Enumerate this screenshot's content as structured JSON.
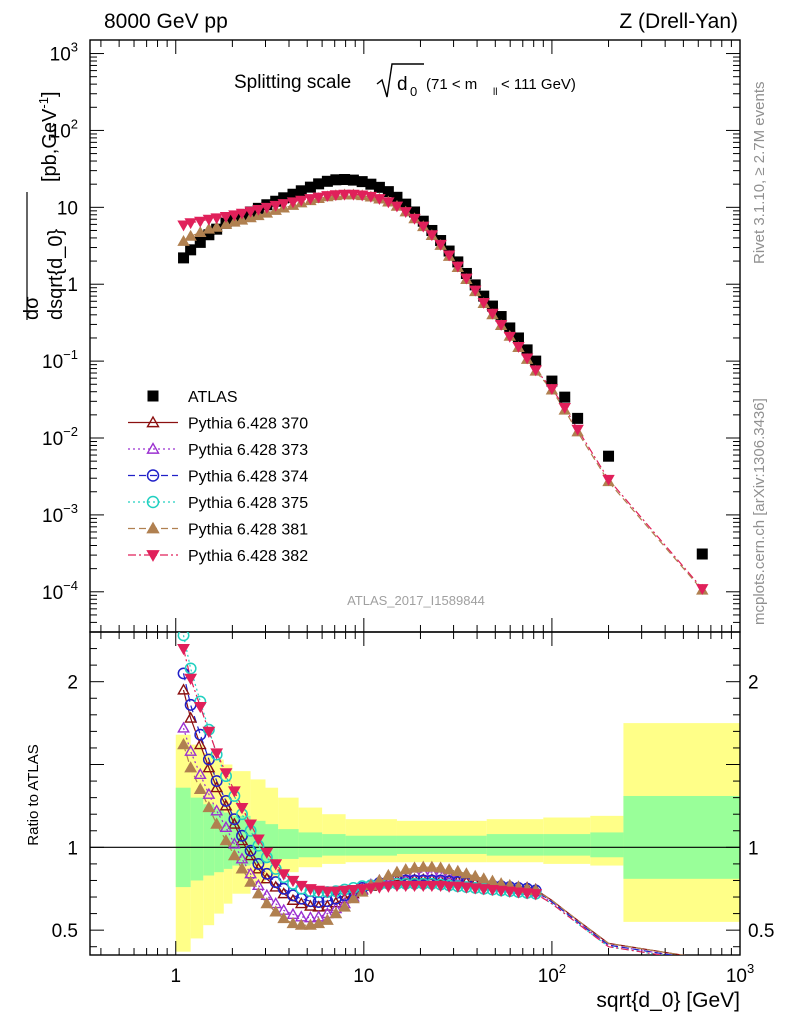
{
  "chart_data": {
    "type": "scatter",
    "header": {
      "left": "8000 GeV pp",
      "right": "Z (Drell-Yan)"
    },
    "side_text": {
      "right_top": "Rivet 3.1.10, ≥ 2.7M events",
      "right_bottom": "mcplots.cern.ch [arXiv:1306.3436]"
    },
    "analysis_label": "ATLAS_2017_I1589844",
    "title": {
      "main": "Splitting scale",
      "sqrt_arg": "d",
      "sub0": "0",
      "cut": "(71 < m",
      "sub_ll": "ll",
      "cut_end": " < 111 GeV)"
    },
    "ylabel_top": {
      "num": "dσ",
      "den": "dsqrt{d_0}",
      "unit": " [pb,GeV",
      "unit_exp": "-1",
      "unit_end": "]"
    },
    "ylabel_ratio": "Ratio to ATLAS",
    "xlabel": "sqrt{d_0} [GeV]",
    "xlim": [
      0.35,
      1000
    ],
    "ylim_top": [
      3e-05,
      1500
    ],
    "ylim_ratio": [
      0.35,
      2.3
    ],
    "x_scale": "log",
    "y_scale_top": "log",
    "x_ticks": [
      {
        "v": 1,
        "b": "1",
        "e": ""
      },
      {
        "v": 10,
        "b": "10",
        "e": ""
      },
      {
        "v": 100,
        "b": "10",
        "e": "2"
      },
      {
        "v": 1000,
        "b": "10",
        "e": "3"
      }
    ],
    "y_ticks_top": [
      {
        "v": 1000,
        "b": "10",
        "e": "3"
      },
      {
        "v": 100,
        "b": "10",
        "e": "2"
      },
      {
        "v": 10,
        "b": "10",
        "e": ""
      },
      {
        "v": 1,
        "b": "1",
        "e": ""
      },
      {
        "v": 0.1,
        "b": "10",
        "e": "−1"
      },
      {
        "v": 0.01,
        "b": "10",
        "e": "−2"
      },
      {
        "v": 0.001,
        "b": "10",
        "e": "−3"
      },
      {
        "v": 0.0001,
        "b": "10",
        "e": "−4"
      }
    ],
    "y_ticks_ratio": [
      {
        "v": 2,
        "b": "2"
      },
      {
        "v": 1,
        "b": "1"
      },
      {
        "v": 0.5,
        "b": "0.5"
      }
    ],
    "legend_position": "lower-left",
    "colors": {
      "ATLAS": "#000000",
      "s370": "#8b1010",
      "s373": "#9b30d0",
      "s374": "#2020c8",
      "s375": "#20d0c0",
      "s381": "#b08050",
      "s382": "#e0205a",
      "band_outer": "#ffff88",
      "band_inner": "#99ff99"
    },
    "x": [
      1.1,
      1.2,
      1.35,
      1.5,
      1.65,
      1.85,
      2.05,
      2.25,
      2.5,
      2.75,
      3.05,
      3.4,
      3.75,
      4.2,
      4.65,
      5.2,
      5.75,
      6.4,
      7.1,
      7.9,
      8.8,
      9.8,
      10.9,
      12.1,
      13.5,
      15,
      16.7,
      18.6,
      20.7,
      23,
      25.6,
      28.4,
      31.6,
      35.1,
      39.1,
      43.4,
      48.3,
      53.7,
      59.7,
      66.4,
      73.8,
      82,
      100,
      117,
      137,
      200,
      630
    ],
    "series": [
      {
        "name": "ATLAS",
        "key": "ATLAS",
        "marker": "square",
        "dash": "none",
        "values": [
          2.2,
          2.8,
          3.5,
          4.4,
          5.2,
          6.2,
          7.0,
          7.8,
          8.7,
          9.7,
          10.8,
          12.0,
          13.3,
          14.8,
          16.4,
          18.3,
          20.2,
          21.8,
          22.8,
          23.0,
          22.6,
          21.6,
          20.0,
          18.2,
          16.0,
          13.5,
          11.0,
          8.7,
          6.6,
          5.0,
          3.7,
          2.7,
          1.95,
          1.38,
          0.98,
          0.7,
          0.52,
          0.38,
          0.27,
          0.2,
          0.14,
          0.1,
          0.055,
          0.034,
          0.018,
          0.0058,
          0.00031
        ],
        "ratio": [],
        "band_outer": [],
        "band_inner": []
      },
      {
        "name": "Pythia 6.428 370",
        "key": "s370",
        "marker": "tri-up-open",
        "dash": "none",
        "values": [],
        "ratio": [
          1.95,
          1.78,
          1.62,
          1.48,
          1.36,
          1.25,
          1.14,
          1.04,
          0.95,
          0.87,
          0.81,
          0.76,
          0.72,
          0.68,
          0.66,
          0.645,
          0.64,
          0.645,
          0.665,
          0.69,
          0.72,
          0.745,
          0.765,
          0.78,
          0.79,
          0.8,
          0.805,
          0.805,
          0.805,
          0.805,
          0.8,
          0.8,
          0.795,
          0.79,
          0.785,
          0.78,
          0.775,
          0.77,
          0.765,
          0.76,
          0.755,
          0.745,
          0.68,
          0.62,
          0.56,
          0.42,
          0.33
        ]
      },
      {
        "name": "Pythia 6.428 373",
        "key": "s373",
        "marker": "tri-up-open",
        "dash": "dotted",
        "values": [],
        "ratio": [
          1.72,
          1.58,
          1.44,
          1.32,
          1.22,
          1.12,
          1.02,
          0.93,
          0.84,
          0.77,
          0.71,
          0.66,
          0.62,
          0.595,
          0.58,
          0.575,
          0.58,
          0.6,
          0.63,
          0.66,
          0.7,
          0.74,
          0.775,
          0.8,
          0.82,
          0.835,
          0.845,
          0.85,
          0.85,
          0.85,
          0.845,
          0.835,
          0.825,
          0.81,
          0.8,
          0.79,
          0.775,
          0.765,
          0.755,
          0.745,
          0.74,
          0.73,
          0.67,
          0.61,
          0.55,
          0.41,
          0.32
        ]
      },
      {
        "name": "Pythia 6.428 374",
        "key": "s374",
        "marker": "circle-open",
        "dash": "dashed",
        "values": [],
        "ratio": [
          2.05,
          1.86,
          1.68,
          1.53,
          1.4,
          1.28,
          1.17,
          1.07,
          0.98,
          0.9,
          0.84,
          0.79,
          0.75,
          0.71,
          0.69,
          0.675,
          0.67,
          0.675,
          0.69,
          0.71,
          0.735,
          0.755,
          0.77,
          0.785,
          0.795,
          0.8,
          0.8,
          0.8,
          0.8,
          0.8,
          0.8,
          0.795,
          0.79,
          0.785,
          0.78,
          0.775,
          0.77,
          0.765,
          0.76,
          0.755,
          0.75,
          0.74,
          0.67,
          0.61,
          0.55,
          0.41,
          0.32
        ]
      },
      {
        "name": "Pythia 6.428 375",
        "key": "s375",
        "marker": "circle-open",
        "dash": "dotted",
        "values": [],
        "ratio": [
          2.28,
          2.08,
          1.88,
          1.71,
          1.56,
          1.43,
          1.31,
          1.2,
          1.1,
          1.01,
          0.94,
          0.87,
          0.82,
          0.78,
          0.75,
          0.735,
          0.73,
          0.73,
          0.735,
          0.745,
          0.755,
          0.765,
          0.77,
          0.775,
          0.78,
          0.78,
          0.78,
          0.78,
          0.78,
          0.78,
          0.775,
          0.77,
          0.765,
          0.76,
          0.755,
          0.75,
          0.745,
          0.74,
          0.735,
          0.73,
          0.725,
          0.72,
          0.66,
          0.6,
          0.54,
          0.4,
          0.31
        ]
      },
      {
        "name": "Pythia 6.428 381",
        "key": "s381",
        "marker": "tri-up-filled",
        "dash": "dashed",
        "values": [
          3.6,
          4.2,
          4.7,
          5.2,
          5.5,
          6.0,
          6.4,
          6.8,
          7.3,
          7.8,
          8.4,
          9.1,
          9.8,
          10.6,
          11.4,
          12.2,
          13.0,
          13.7,
          14.2,
          14.5,
          14.5,
          14.2,
          13.6,
          12.8,
          11.7,
          10.3,
          8.7,
          7.1,
          5.6,
          4.3,
          3.2,
          2.3,
          1.65,
          1.15,
          0.8,
          0.56,
          0.4,
          0.29,
          0.21,
          0.15,
          0.105,
          0.074,
          0.042,
          0.023,
          0.012,
          0.0027,
          0.000105
        ],
        "ratio": [
          1.62,
          1.48,
          1.35,
          1.24,
          1.14,
          1.04,
          0.95,
          0.87,
          0.79,
          0.72,
          0.66,
          0.61,
          0.57,
          0.54,
          0.53,
          0.53,
          0.54,
          0.56,
          0.6,
          0.64,
          0.69,
          0.73,
          0.77,
          0.8,
          0.83,
          0.85,
          0.865,
          0.875,
          0.88,
          0.88,
          0.875,
          0.865,
          0.855,
          0.84,
          0.825,
          0.81,
          0.795,
          0.78,
          0.77,
          0.76,
          0.75,
          0.74,
          0.68,
          0.62,
          0.56,
          0.42,
          0.33
        ]
      },
      {
        "name": "Pythia 6.428 382",
        "key": "s382",
        "marker": "tri-down-filled",
        "dash": "dashdot",
        "values": [
          5.9,
          6.3,
          6.6,
          7.0,
          7.3,
          7.6,
          8.0,
          8.4,
          8.9,
          9.4,
          10.0,
          10.6,
          11.2,
          11.8,
          12.4,
          13.0,
          13.6,
          14.2,
          14.6,
          14.8,
          14.8,
          14.5,
          13.9,
          13.0,
          11.8,
          10.4,
          8.8,
          7.2,
          5.7,
          4.4,
          3.3,
          2.4,
          1.72,
          1.2,
          0.84,
          0.58,
          0.42,
          0.3,
          0.21,
          0.155,
          0.11,
          0.077,
          0.044,
          0.025,
          0.013,
          0.0029,
          0.00011
        ],
        "ratio": [
          2.2,
          2.02,
          1.85,
          1.7,
          1.57,
          1.45,
          1.34,
          1.24,
          1.14,
          1.05,
          0.97,
          0.9,
          0.84,
          0.8,
          0.77,
          0.75,
          0.74,
          0.735,
          0.735,
          0.74,
          0.745,
          0.75,
          0.755,
          0.76,
          0.765,
          0.77,
          0.77,
          0.77,
          0.77,
          0.77,
          0.77,
          0.765,
          0.765,
          0.76,
          0.755,
          0.75,
          0.745,
          0.74,
          0.735,
          0.73,
          0.725,
          0.72,
          0.66,
          0.6,
          0.54,
          0.4,
          0.31
        ]
      }
    ],
    "band_bins": [
      {
        "lo": 1.0,
        "hi": 1.2,
        "o_lo": 0.37,
        "o_hi": 1.68,
        "i_lo": 0.76,
        "i_hi": 1.36
      },
      {
        "lo": 1.2,
        "hi": 1.4,
        "o_lo": 0.45,
        "o_hi": 1.62,
        "i_lo": 0.8,
        "i_hi": 1.3
      },
      {
        "lo": 1.4,
        "hi": 1.6,
        "o_lo": 0.53,
        "o_hi": 1.57,
        "i_lo": 0.83,
        "i_hi": 1.26
      },
      {
        "lo": 1.6,
        "hi": 1.8,
        "o_lo": 0.6,
        "o_hi": 1.53,
        "i_lo": 0.85,
        "i_hi": 1.23
      },
      {
        "lo": 1.8,
        "hi": 2.0,
        "o_lo": 0.66,
        "o_hi": 1.5,
        "i_lo": 0.87,
        "i_hi": 1.21
      },
      {
        "lo": 2.0,
        "hi": 2.5,
        "o_lo": 0.72,
        "o_hi": 1.46,
        "i_lo": 0.89,
        "i_hi": 1.19
      },
      {
        "lo": 2.5,
        "hi": 3.0,
        "o_lo": 0.78,
        "o_hi": 1.41,
        "i_lo": 0.9,
        "i_hi": 1.16
      },
      {
        "lo": 3.0,
        "hi": 3.5,
        "o_lo": 0.82,
        "o_hi": 1.36,
        "i_lo": 0.91,
        "i_hi": 1.14
      },
      {
        "lo": 3.5,
        "hi": 4.5,
        "o_lo": 0.85,
        "o_hi": 1.3,
        "i_lo": 0.93,
        "i_hi": 1.11
      },
      {
        "lo": 4.5,
        "hi": 6.0,
        "o_lo": 0.88,
        "o_hi": 1.24,
        "i_lo": 0.94,
        "i_hi": 1.09
      },
      {
        "lo": 6.0,
        "hi": 8.0,
        "o_lo": 0.9,
        "o_hi": 1.2,
        "i_lo": 0.95,
        "i_hi": 1.08
      },
      {
        "lo": 8.0,
        "hi": 15.0,
        "o_lo": 0.91,
        "o_hi": 1.17,
        "i_lo": 0.95,
        "i_hi": 1.07
      },
      {
        "lo": 15.0,
        "hi": 45.0,
        "o_lo": 0.91,
        "o_hi": 1.16,
        "i_lo": 0.96,
        "i_hi": 1.07
      },
      {
        "lo": 45.0,
        "hi": 90.0,
        "o_lo": 0.91,
        "o_hi": 1.17,
        "i_lo": 0.95,
        "i_hi": 1.08
      },
      {
        "lo": 90.0,
        "hi": 160.0,
        "o_lo": 0.9,
        "o_hi": 1.18,
        "i_lo": 0.95,
        "i_hi": 1.08
      },
      {
        "lo": 160.0,
        "hi": 240.0,
        "o_lo": 0.89,
        "o_hi": 1.19,
        "i_lo": 0.94,
        "i_hi": 1.09
      },
      {
        "lo": 240.0,
        "hi": 1000.0,
        "o_lo": 0.55,
        "o_hi": 1.75,
        "i_lo": 0.81,
        "i_hi": 1.31
      }
    ]
  }
}
